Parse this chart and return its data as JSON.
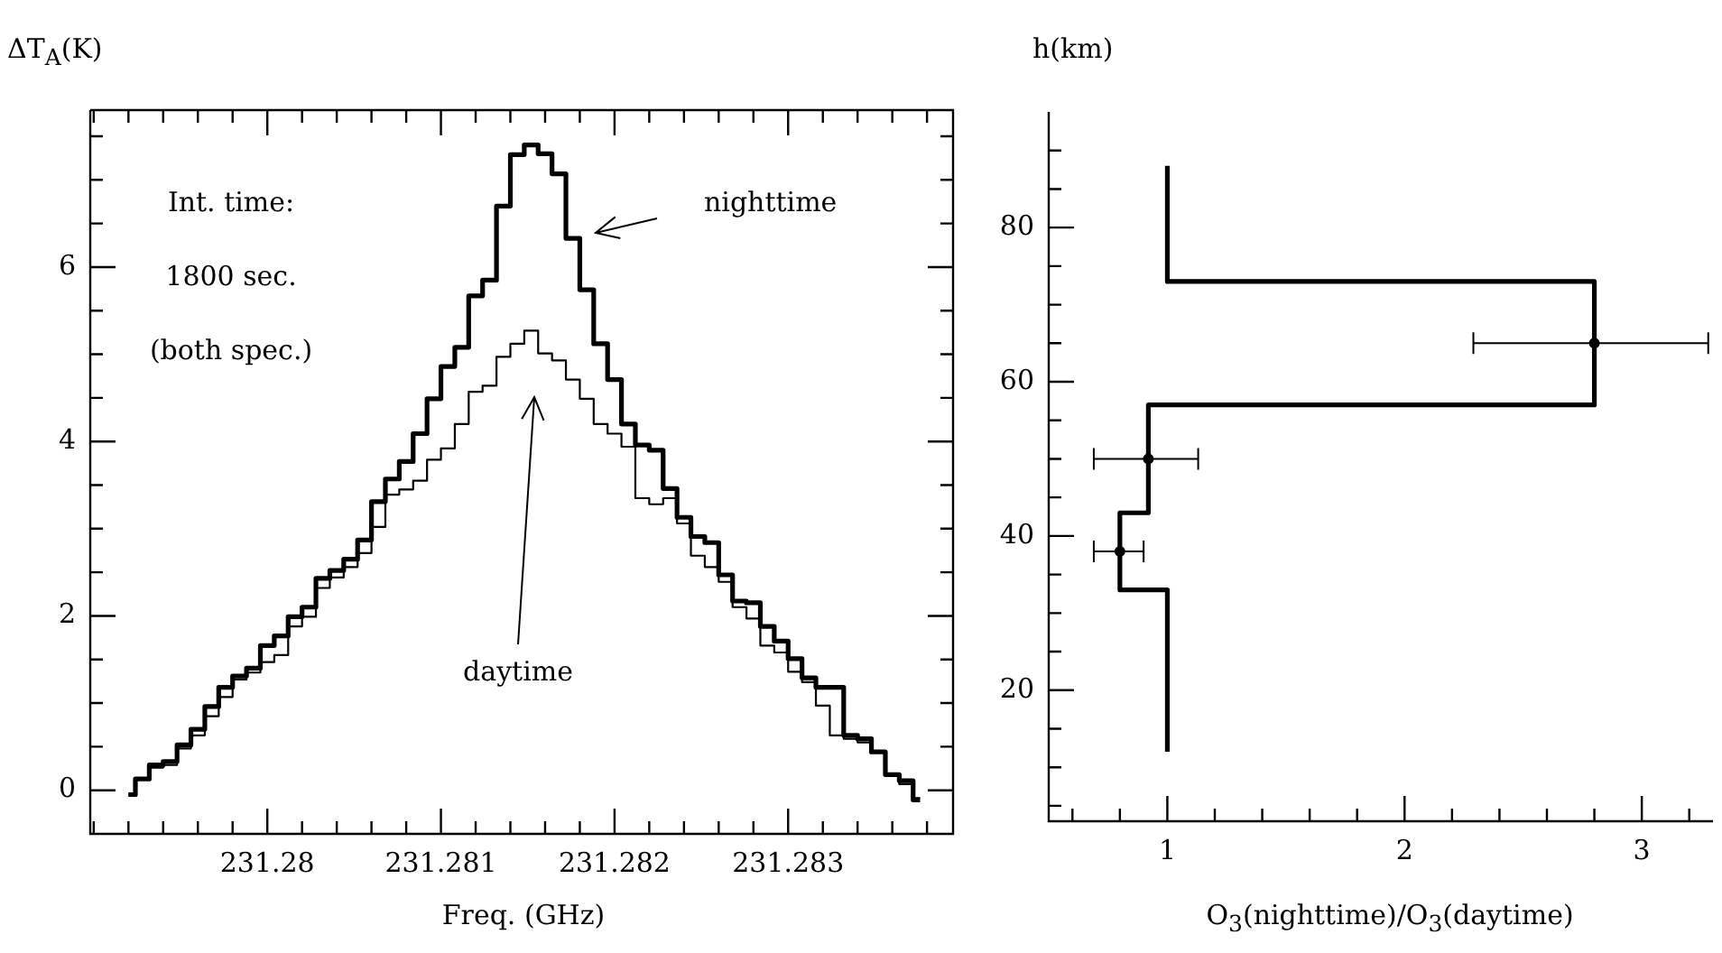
{
  "chart_data": [
    {
      "type": "step",
      "ylabel": "ΔT$_{A}$(K)",
      "xlabel": "Freq. (GHz)",
      "annotations": [
        "Int. time:",
        "1800 sec.",
        "(both spec.)",
        "nighttime",
        "daytime"
      ],
      "x": [
        231.2792,
        231.27928,
        231.27936,
        231.27944,
        231.27952,
        231.2796,
        231.27968,
        231.27976,
        231.27984,
        231.27992,
        231.28,
        231.28008,
        231.28016,
        231.28024,
        231.28032,
        231.2804,
        231.28048,
        231.28056,
        231.28064,
        231.28072,
        231.2808,
        231.28088,
        231.28096,
        231.28104,
        231.28112,
        231.2812,
        231.28128,
        231.28136,
        231.28144,
        231.28152,
        231.2816,
        231.28168,
        231.28176,
        231.28184,
        231.28192,
        231.282,
        231.28208,
        231.28216,
        231.28224,
        231.28232,
        231.2824,
        231.28248,
        231.28256,
        231.28264,
        231.28272,
        231.2828,
        231.28288,
        231.28296,
        231.28304,
        231.28312,
        231.2832,
        231.28328,
        231.28336,
        231.28344,
        231.28352,
        231.2836,
        231.28368,
        231.28376
      ],
      "series": [
        {
          "color": "#000000",
          "values": [
            -0.05,
            0.13,
            0.29,
            0.33,
            0.52,
            0.7,
            0.96,
            1.18,
            1.31,
            1.4,
            1.66,
            1.77,
            1.99,
            2.1,
            2.43,
            2.52,
            2.65,
            2.87,
            3.31,
            3.57,
            3.77,
            4.09,
            4.49,
            4.86,
            5.08,
            5.67,
            5.85,
            6.7,
            7.29,
            7.4,
            7.3,
            7.07,
            6.33,
            5.74,
            5.12,
            4.71,
            4.2,
            3.96,
            3.9,
            3.46,
            3.13,
            2.91,
            2.84,
            2.47,
            2.17,
            2.15,
            1.88,
            1.71,
            1.51,
            1.29,
            1.18,
            1.18,
            0.63,
            0.59,
            0.44,
            0.18,
            0.11,
            -0.11
          ]
        },
        {
          "color": "#000000",
          "values": [
            -0.05,
            0.13,
            0.26,
            0.29,
            0.48,
            0.63,
            0.85,
            1.07,
            1.27,
            1.35,
            1.47,
            1.55,
            1.88,
            1.99,
            2.32,
            2.44,
            2.56,
            2.72,
            3.02,
            3.39,
            3.45,
            3.55,
            3.79,
            3.92,
            4.2,
            4.57,
            4.64,
            4.97,
            5.12,
            5.27,
            5.01,
            4.93,
            4.71,
            4.49,
            4.2,
            4.09,
            3.94,
            3.35,
            3.28,
            3.35,
            3.06,
            2.69,
            2.56,
            2.39,
            2.1,
            1.97,
            1.66,
            1.58,
            1.36,
            1.24,
            0.97,
            0.63,
            0.59,
            0.55,
            0.44,
            0.18,
            0.07,
            -0.09
          ]
        }
      ],
      "xlim": [
        231.27898,
        231.28395
      ],
      "ylim": [
        -0.5,
        7.8
      ],
      "xticks": [
        {
          "value": 231.279,
          "label": null
        },
        {
          "value": 231.2792,
          "label": null
        },
        {
          "value": 231.2794,
          "label": null
        },
        {
          "value": 231.2796,
          "label": null
        },
        {
          "value": 231.2798,
          "label": null
        },
        231.28,
        {
          "value": 231.2802,
          "label": null
        },
        {
          "value": 231.2804,
          "label": null
        },
        {
          "value": 231.2806,
          "label": null
        },
        {
          "value": 231.2808,
          "label": null
        },
        231.281,
        {
          "value": 231.2812,
          "label": null
        },
        {
          "value": 231.2814,
          "label": null
        },
        {
          "value": 231.2816,
          "label": null
        },
        {
          "value": 231.2818,
          "label": null
        },
        231.282,
        {
          "value": 231.2822,
          "label": null
        },
        {
          "value": 231.2824,
          "label": null
        },
        {
          "value": 231.2826,
          "label": null
        },
        {
          "value": 231.2828,
          "label": null
        },
        231.283,
        {
          "value": 231.2832,
          "label": null
        },
        {
          "value": 231.2834,
          "label": null
        },
        {
          "value": 231.2836,
          "label": null
        },
        {
          "value": 231.2838,
          "label": null
        }
      ],
      "yticks": [
        0,
        {
          "value": 0.5,
          "label": null
        },
        {
          "value": 1,
          "label": null
        },
        {
          "value": 1.5,
          "label": null
        },
        2,
        {
          "value": 2.5,
          "label": null
        },
        {
          "value": 3,
          "label": null
        },
        {
          "value": 3.5,
          "label": null
        },
        4,
        {
          "value": 4.5,
          "label": null
        },
        {
          "value": 5,
          "label": null
        },
        {
          "value": 5.5,
          "label": null
        },
        6,
        {
          "value": 6.5,
          "label": null
        },
        {
          "value": 7,
          "label": null
        },
        {
          "value": 7.5,
          "label": null
        }
      ],
      "grid": false,
      "legend": false,
      "marker": "none"
    },
    {
      "type": "line",
      "ylabel": "h(km)",
      "xlabel": "O$_{3}$(nighttime)/O$_{3}$(daytime)",
      "series": [
        {
          "color": "#000000",
          "x": [
            1,
            1,
            0.8,
            0.8,
            0.92,
            0.92,
            2.8,
            2.8,
            1,
            1
          ],
          "values": [
            12,
            33,
            33,
            43,
            43,
            57,
            57,
            73,
            73,
            88
          ]
        },
        {
          "type": "scatter",
          "marker": "circle",
          "color": "#000000",
          "x": [
            2.8,
            0.92,
            0.8
          ],
          "values": [
            65,
            50,
            38
          ],
          "xerrors": [
            [
              2.29,
              3.28
            ],
            [
              0.69,
              1.13
            ],
            [
              0.69,
              0.9
            ]
          ]
        }
      ],
      "xlim": [
        0.5,
        3.3
      ],
      "ylim": [
        3,
        95
      ],
      "xticks": [
        {
          "value": 0.6,
          "label": null
        },
        {
          "value": 0.8,
          "label": null
        },
        1,
        {
          "value": 1.2,
          "label": null
        },
        {
          "value": 1.4,
          "label": null
        },
        {
          "value": 1.6,
          "label": null
        },
        {
          "value": 1.8,
          "label": null
        },
        2,
        {
          "value": 2.2,
          "label": null
        },
        {
          "value": 2.4,
          "label": null
        },
        {
          "value": 2.6,
          "label": null
        },
        {
          "value": 2.8,
          "label": null
        },
        3,
        {
          "value": 3.2,
          "label": null
        }
      ],
      "yticks": [
        {
          "value": 5,
          "label": null
        },
        {
          "value": 10,
          "label": null
        },
        {
          "value": 15,
          "label": null
        },
        20,
        {
          "value": 25,
          "label": null
        },
        {
          "value": 30,
          "label": null
        },
        {
          "value": 35,
          "label": null
        },
        40,
        {
          "value": 45,
          "label": null
        },
        {
          "value": 50,
          "label": null
        },
        {
          "value": 55,
          "label": null
        },
        60,
        {
          "value": 65,
          "label": null
        },
        {
          "value": 70,
          "label": null
        },
        {
          "value": 75,
          "label": null
        },
        80,
        {
          "value": 85,
          "label": null
        },
        {
          "value": 90,
          "label": null
        }
      ],
      "grid": false,
      "legend": false,
      "marker": "none"
    }
  ]
}
